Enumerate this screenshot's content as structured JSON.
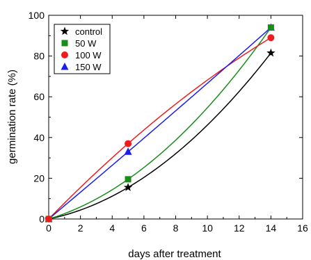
{
  "chart_data": {
    "type": "scatter",
    "xlabel": "days after treatment",
    "ylabel": "germination rate (%)",
    "xlim": [
      0,
      16
    ],
    "ylim": [
      0,
      100
    ],
    "xticks": [
      0,
      2,
      4,
      6,
      8,
      10,
      12,
      14,
      16
    ],
    "yticks": [
      0,
      20,
      40,
      60,
      80,
      100
    ],
    "grid": false,
    "legend_position": "top-left",
    "series": [
      {
        "name": "control",
        "marker": "star",
        "color": "#000000",
        "x": [
          0,
          5,
          14
        ],
        "y": [
          0,
          15.5,
          81.5
        ]
      },
      {
        "name": "50 W",
        "marker": "square",
        "color": "#1a8c1a",
        "x": [
          0,
          5,
          14
        ],
        "y": [
          0,
          19.5,
          94
        ]
      },
      {
        "name": "100 W",
        "marker": "circle",
        "color": "#ee1c1c",
        "x": [
          0,
          5,
          14
        ],
        "y": [
          0,
          37,
          89
        ]
      },
      {
        "name": "150 W",
        "marker": "triangle",
        "color": "#1c1cee",
        "x": [
          0,
          5,
          14
        ],
        "y": [
          0,
          33,
          94
        ]
      }
    ]
  }
}
